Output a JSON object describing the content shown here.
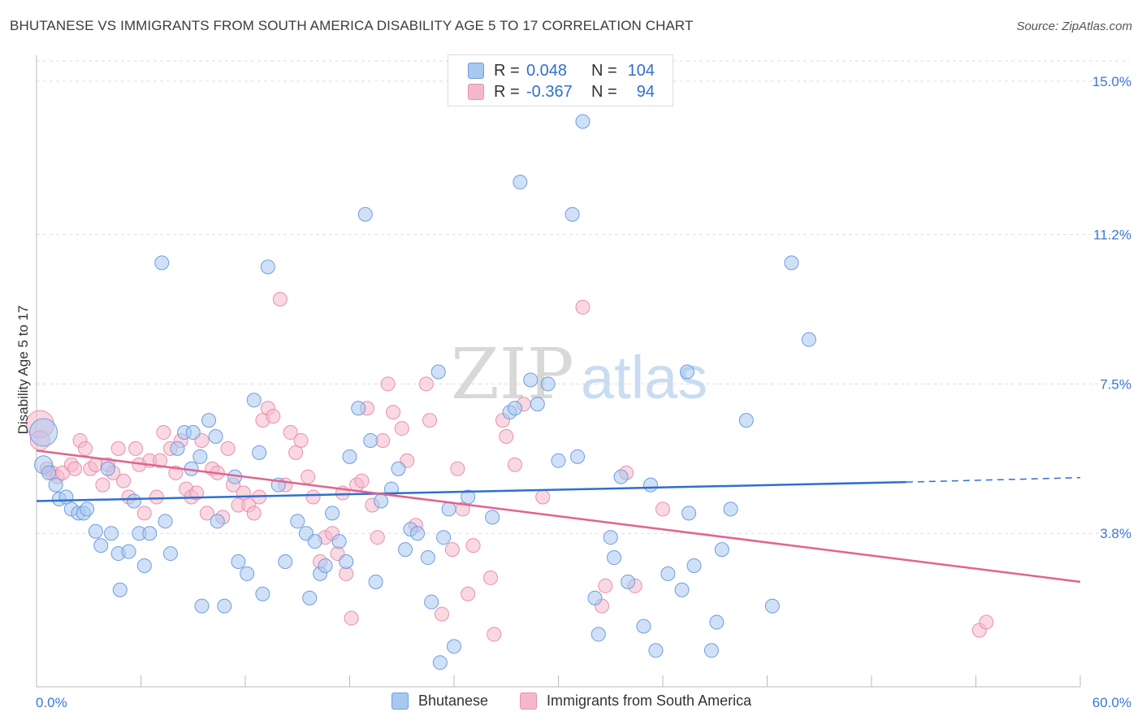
{
  "title": "BHUTANESE VS IMMIGRANTS FROM SOUTH AMERICA DISABILITY AGE 5 TO 17 CORRELATION CHART",
  "source": "Source: ZipAtlas.com",
  "watermark": {
    "zip": "ZIP",
    "atlas": "atlas"
  },
  "legend": {
    "rows": [
      {
        "r_label": "R =",
        "r_value": "0.048",
        "n_label": "N =",
        "n_value": "104"
      },
      {
        "r_label": "R =",
        "r_value": "-0.367",
        "n_label": "N =",
        "n_value": "94"
      }
    ]
  },
  "bottom_legend": [
    "Bhutanese",
    "Immigrants from South America"
  ],
  "colors": {
    "blue_fill": "#a9c8f0",
    "blue_stroke": "#6e9de0",
    "blue_line": "#2f6fd0",
    "pink_fill": "#f5b8cb",
    "pink_stroke": "#e890ad",
    "pink_line": "#e0648f",
    "tick_label": "#3a78d4",
    "grid": "#dddddd"
  },
  "chart_data": {
    "type": "scatter",
    "title": "BHUTANESE VS IMMIGRANTS FROM SOUTH AMERICA DISABILITY AGE 5 TO 17 CORRELATION CHART",
    "xlabel": "",
    "ylabel": "Disability Age 5 to 17",
    "xlim": [
      0,
      60
    ],
    "ylim": [
      0,
      15.5
    ],
    "x_tick_labels": [
      "0.0%",
      "60.0%"
    ],
    "y_ticks": [
      3.8,
      7.5,
      11.2,
      15.0
    ],
    "y_tick_labels": [
      "3.8%",
      "7.5%",
      "11.2%",
      "15.0%"
    ],
    "grid": "horizontal dashed",
    "series": [
      {
        "name": "Bhutanese",
        "color": "#a9c8f0",
        "trend": {
          "x": [
            0,
            50
          ],
          "y": [
            4.6,
            5.07
          ],
          "dashed_extension_to": [
            60,
            5.18
          ]
        },
        "points": [
          [
            0.4,
            6.3
          ],
          [
            0.4,
            5.5
          ],
          [
            0.7,
            5.3
          ],
          [
            1.1,
            5.0
          ],
          [
            1.3,
            4.65
          ],
          [
            1.7,
            4.7
          ],
          [
            2.0,
            4.4
          ],
          [
            2.4,
            4.3
          ],
          [
            2.7,
            4.3
          ],
          [
            2.9,
            4.4
          ],
          [
            3.4,
            3.85
          ],
          [
            3.7,
            3.5
          ],
          [
            4.1,
            5.4
          ],
          [
            4.3,
            3.8
          ],
          [
            4.7,
            3.3
          ],
          [
            4.8,
            2.4
          ],
          [
            5.3,
            3.35
          ],
          [
            5.6,
            4.6
          ],
          [
            5.9,
            3.8
          ],
          [
            6.2,
            3.0
          ],
          [
            6.5,
            3.8
          ],
          [
            7.2,
            10.5
          ],
          [
            7.4,
            4.1
          ],
          [
            7.7,
            3.3
          ],
          [
            8.1,
            5.9
          ],
          [
            8.5,
            6.3
          ],
          [
            8.9,
            5.4
          ],
          [
            9.0,
            6.3
          ],
          [
            9.4,
            5.7
          ],
          [
            9.5,
            2.0
          ],
          [
            9.9,
            6.6
          ],
          [
            10.3,
            6.2
          ],
          [
            10.4,
            4.1
          ],
          [
            10.8,
            2.0
          ],
          [
            11.4,
            5.2
          ],
          [
            11.6,
            3.1
          ],
          [
            12.1,
            2.8
          ],
          [
            12.5,
            7.1
          ],
          [
            12.8,
            5.8
          ],
          [
            13.0,
            2.3
          ],
          [
            13.3,
            10.4
          ],
          [
            13.9,
            5.0
          ],
          [
            14.3,
            3.1
          ],
          [
            15.0,
            4.1
          ],
          [
            15.5,
            3.8
          ],
          [
            15.7,
            2.2
          ],
          [
            16.0,
            3.6
          ],
          [
            16.3,
            2.8
          ],
          [
            16.6,
            3.0
          ],
          [
            17.0,
            4.3
          ],
          [
            17.4,
            3.6
          ],
          [
            17.8,
            3.1
          ],
          [
            18.0,
            5.7
          ],
          [
            18.5,
            6.9
          ],
          [
            18.9,
            11.7
          ],
          [
            19.2,
            6.1
          ],
          [
            19.5,
            2.6
          ],
          [
            19.8,
            4.6
          ],
          [
            20.4,
            4.9
          ],
          [
            20.8,
            5.4
          ],
          [
            21.2,
            3.4
          ],
          [
            21.5,
            3.9
          ],
          [
            21.9,
            3.8
          ],
          [
            22.5,
            3.2
          ],
          [
            22.7,
            2.1
          ],
          [
            23.2,
            0.6
          ],
          [
            23.1,
            7.8
          ],
          [
            23.4,
            3.7
          ],
          [
            23.7,
            4.4
          ],
          [
            24.0,
            1.0
          ],
          [
            24.8,
            4.7
          ],
          [
            26.2,
            4.2
          ],
          [
            27.2,
            6.8
          ],
          [
            27.5,
            6.9
          ],
          [
            27.8,
            12.5
          ],
          [
            28.4,
            7.6
          ],
          [
            28.8,
            7.0
          ],
          [
            29.4,
            7.5
          ],
          [
            30.0,
            5.6
          ],
          [
            30.8,
            11.7
          ],
          [
            31.4,
            14.0
          ],
          [
            31.1,
            5.7
          ],
          [
            32.1,
            2.2
          ],
          [
            32.3,
            1.3
          ],
          [
            33.0,
            3.7
          ],
          [
            33.2,
            3.2
          ],
          [
            33.6,
            5.2
          ],
          [
            34.0,
            2.6
          ],
          [
            34.9,
            1.5
          ],
          [
            35.3,
            5.0
          ],
          [
            35.6,
            0.9
          ],
          [
            36.3,
            2.8
          ],
          [
            37.4,
            7.8
          ],
          [
            37.1,
            2.4
          ],
          [
            37.5,
            4.3
          ],
          [
            37.8,
            3.0
          ],
          [
            38.8,
            0.9
          ],
          [
            39.1,
            1.6
          ],
          [
            39.4,
            3.4
          ],
          [
            39.9,
            4.4
          ],
          [
            40.8,
            6.6
          ],
          [
            42.3,
            2.0
          ],
          [
            43.4,
            10.5
          ],
          [
            44.4,
            8.6
          ]
        ]
      },
      {
        "name": "Immigrants from South America",
        "color": "#f5b8cb",
        "trend": {
          "x": [
            0,
            60
          ],
          "y": [
            5.85,
            2.6
          ]
        },
        "points": [
          [
            0.2,
            6.5
          ],
          [
            0.2,
            6.1
          ],
          [
            0.6,
            5.4
          ],
          [
            0.9,
            5.3
          ],
          [
            1.2,
            5.2
          ],
          [
            1.5,
            5.3
          ],
          [
            2.0,
            5.5
          ],
          [
            2.2,
            5.4
          ],
          [
            2.5,
            6.1
          ],
          [
            2.8,
            5.9
          ],
          [
            3.1,
            5.4
          ],
          [
            3.4,
            5.5
          ],
          [
            3.8,
            5.0
          ],
          [
            4.1,
            5.5
          ],
          [
            4.4,
            5.3
          ],
          [
            4.7,
            5.9
          ],
          [
            5.0,
            5.1
          ],
          [
            5.3,
            4.7
          ],
          [
            5.7,
            5.9
          ],
          [
            5.9,
            5.5
          ],
          [
            6.2,
            4.3
          ],
          [
            6.5,
            5.6
          ],
          [
            6.9,
            4.7
          ],
          [
            7.1,
            5.6
          ],
          [
            7.3,
            6.3
          ],
          [
            7.7,
            5.9
          ],
          [
            8.0,
            5.3
          ],
          [
            8.3,
            6.1
          ],
          [
            8.6,
            4.9
          ],
          [
            8.9,
            4.7
          ],
          [
            9.2,
            4.8
          ],
          [
            9.5,
            6.1
          ],
          [
            9.8,
            4.3
          ],
          [
            10.1,
            5.4
          ],
          [
            10.4,
            5.3
          ],
          [
            10.7,
            4.2
          ],
          [
            11.0,
            5.9
          ],
          [
            11.3,
            5.0
          ],
          [
            11.6,
            4.5
          ],
          [
            11.9,
            4.8
          ],
          [
            12.2,
            4.5
          ],
          [
            12.5,
            4.3
          ],
          [
            12.8,
            4.7
          ],
          [
            13.0,
            6.6
          ],
          [
            13.3,
            6.9
          ],
          [
            13.6,
            6.7
          ],
          [
            14.0,
            9.6
          ],
          [
            14.3,
            5.0
          ],
          [
            14.6,
            6.3
          ],
          [
            14.9,
            5.8
          ],
          [
            15.2,
            6.1
          ],
          [
            15.6,
            5.2
          ],
          [
            15.9,
            4.7
          ],
          [
            16.3,
            3.1
          ],
          [
            16.6,
            3.7
          ],
          [
            17.0,
            3.8
          ],
          [
            17.3,
            3.3
          ],
          [
            17.6,
            4.8
          ],
          [
            17.8,
            2.8
          ],
          [
            18.1,
            1.7
          ],
          [
            18.4,
            5.0
          ],
          [
            18.7,
            5.1
          ],
          [
            19.0,
            6.9
          ],
          [
            19.3,
            4.5
          ],
          [
            19.6,
            3.7
          ],
          [
            19.9,
            6.1
          ],
          [
            20.2,
            7.5
          ],
          [
            20.5,
            6.8
          ],
          [
            21.0,
            6.4
          ],
          [
            21.3,
            5.6
          ],
          [
            21.8,
            4.0
          ],
          [
            22.4,
            7.5
          ],
          [
            22.6,
            6.6
          ],
          [
            23.3,
            1.8
          ],
          [
            23.9,
            3.4
          ],
          [
            24.2,
            5.4
          ],
          [
            24.5,
            4.4
          ],
          [
            24.8,
            2.3
          ],
          [
            25.1,
            3.5
          ],
          [
            26.1,
            2.7
          ],
          [
            26.3,
            1.3
          ],
          [
            26.8,
            6.6
          ],
          [
            27.0,
            6.2
          ],
          [
            27.5,
            5.5
          ],
          [
            28.0,
            7.0
          ],
          [
            29.1,
            4.7
          ],
          [
            31.4,
            9.4
          ],
          [
            32.5,
            2.0
          ],
          [
            32.7,
            2.5
          ],
          [
            33.9,
            5.3
          ],
          [
            34.4,
            2.5
          ],
          [
            36.0,
            4.4
          ],
          [
            54.2,
            1.4
          ],
          [
            54.6,
            1.6
          ]
        ]
      }
    ]
  }
}
